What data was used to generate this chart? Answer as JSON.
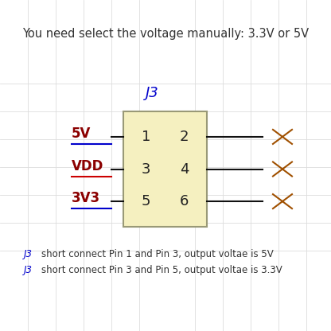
{
  "title": "You need select the voltage manually: 3.3V or 5V",
  "title_fontsize": 10.5,
  "title_color": "#333333",
  "bg_color": "#ffffff",
  "connector_label": "J3",
  "connector_label_color": "#0000cc",
  "connector_box_facecolor": "#f5f0c0",
  "connector_box_edgecolor": "#999977",
  "pin_labels_left": [
    "1",
    "3",
    "5"
  ],
  "pin_labels_right": [
    "2",
    "4",
    "6"
  ],
  "pin_label_color": "#222222",
  "left_labels": [
    "5V",
    "VDD",
    "3V3"
  ],
  "left_label_colors_text": [
    "#8b0000",
    "#8b0000",
    "#8b0000"
  ],
  "left_label_underline_colors": [
    "#0000cc",
    "#cc0000",
    "#0000cc"
  ],
  "note_j3_color": "#0000cc",
  "note_text_color": "#333333",
  "right_x_color": "#a05000",
  "grid_color": "#dddddd",
  "line_color": "#111111"
}
